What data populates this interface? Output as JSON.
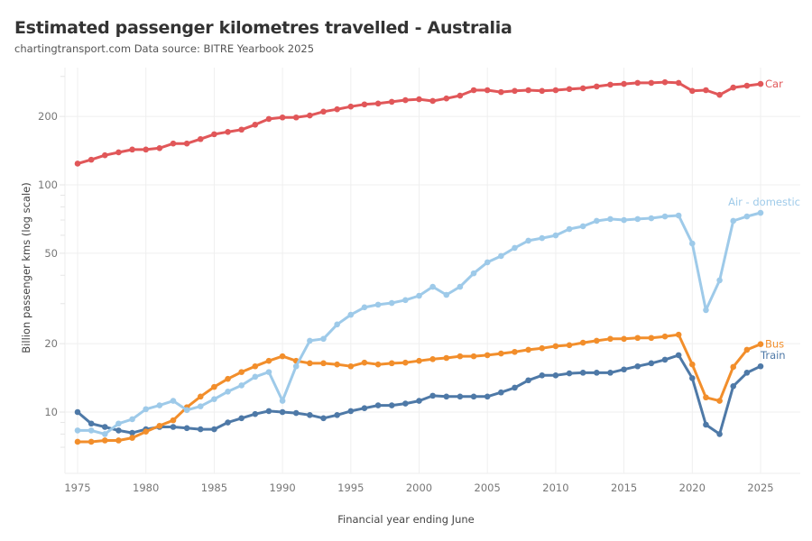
{
  "chart_data": {
    "type": "line",
    "title": "Estimated passenger kilometres travelled - Australia",
    "subtitle": "chartingtransport.com  Data source: BITRE Yearbook 2025",
    "xlabel": "Financial year ending June",
    "ylabel": "Billion passenger kms (log scale)",
    "yscale": "log",
    "ylim": [
      6,
      330
    ],
    "xlim": [
      1972,
      2028
    ],
    "yticks": [
      10,
      20,
      50,
      100,
      200
    ],
    "ytick_labels": [
      "10",
      "20",
      "50",
      "100",
      "200"
    ],
    "xticks": [
      1975,
      1980,
      1985,
      1990,
      1995,
      2000,
      2005,
      2010,
      2015,
      2020,
      2025
    ],
    "xtick_labels": [
      "1975",
      "1980",
      "1985",
      "1990",
      "1995",
      "2000",
      "2005",
      "2010",
      "2015",
      "2020",
      "2025"
    ],
    "grid": true,
    "legend": "direct labels at line ends",
    "x": [
      1975,
      1976,
      1977,
      1978,
      1979,
      1980,
      1981,
      1982,
      1983,
      1984,
      1985,
      1986,
      1987,
      1988,
      1989,
      1990,
      1991,
      1992,
      1993,
      1994,
      1995,
      1996,
      1997,
      1998,
      1999,
      2000,
      2001,
      2002,
      2003,
      2004,
      2005,
      2006,
      2007,
      2008,
      2009,
      2010,
      2011,
      2012,
      2013,
      2014,
      2015,
      2016,
      2017,
      2018,
      2019,
      2020,
      2021,
      2022,
      2023,
      2024,
      2025
    ],
    "series": [
      {
        "name": "Car",
        "color": "#e15759",
        "values": [
          124,
          129,
          135,
          139,
          143,
          143,
          145,
          152,
          152,
          159,
          167,
          171,
          175,
          184,
          195,
          198,
          198,
          202,
          210,
          215,
          221,
          226,
          228,
          232,
          236,
          238,
          234,
          240,
          247,
          261,
          261,
          256,
          259,
          261,
          259,
          261,
          264,
          266,
          271,
          276,
          278,
          281,
          281,
          283,
          281,
          259,
          261,
          249,
          268,
          273,
          278
        ]
      },
      {
        "name": "Air - domestic",
        "color": "#9ecae9",
        "values": [
          8.3,
          8.3,
          8.0,
          8.9,
          9.3,
          10.3,
          10.7,
          11.2,
          10.2,
          10.6,
          11.4,
          12.3,
          13.1,
          14.3,
          15.0,
          11.2,
          15.9,
          20.6,
          21.0,
          24.3,
          26.8,
          28.9,
          29.7,
          30.2,
          31.1,
          32.5,
          35.6,
          32.8,
          35.6,
          40.8,
          45.6,
          48.6,
          52.8,
          56.8,
          58.3,
          59.9,
          63.9,
          65.7,
          69.4,
          70.7,
          70.0,
          70.7,
          71.3,
          72.6,
          73.3,
          55.2,
          28.1,
          38.0,
          69.4,
          72.6,
          75.3
        ]
      },
      {
        "name": "Bus",
        "color": "#f28e2b",
        "values": [
          7.4,
          7.4,
          7.5,
          7.5,
          7.7,
          8.2,
          8.7,
          9.2,
          10.5,
          11.7,
          12.9,
          14.0,
          15.0,
          15.9,
          16.8,
          17.6,
          16.8,
          16.4,
          16.4,
          16.2,
          15.9,
          16.5,
          16.2,
          16.4,
          16.5,
          16.8,
          17.1,
          17.3,
          17.6,
          17.6,
          17.8,
          18.1,
          18.4,
          18.8,
          19.1,
          19.5,
          19.7,
          20.2,
          20.6,
          21.0,
          21.0,
          21.2,
          21.2,
          21.5,
          21.9,
          16.2,
          11.6,
          11.2,
          15.8,
          18.8,
          19.9
        ]
      },
      {
        "name": "Train",
        "color": "#4e79a7",
        "values": [
          10.0,
          8.9,
          8.6,
          8.3,
          8.1,
          8.4,
          8.6,
          8.6,
          8.5,
          8.4,
          8.4,
          9.0,
          9.4,
          9.8,
          10.1,
          10.0,
          9.9,
          9.7,
          9.4,
          9.7,
          10.1,
          10.4,
          10.7,
          10.7,
          10.9,
          11.2,
          11.8,
          11.7,
          11.7,
          11.7,
          11.7,
          12.2,
          12.8,
          13.8,
          14.5,
          14.5,
          14.8,
          14.9,
          14.9,
          14.9,
          15.4,
          15.9,
          16.4,
          17.0,
          17.8,
          14.1,
          8.8,
          8.0,
          13.0,
          14.9,
          15.9
        ]
      }
    ]
  }
}
